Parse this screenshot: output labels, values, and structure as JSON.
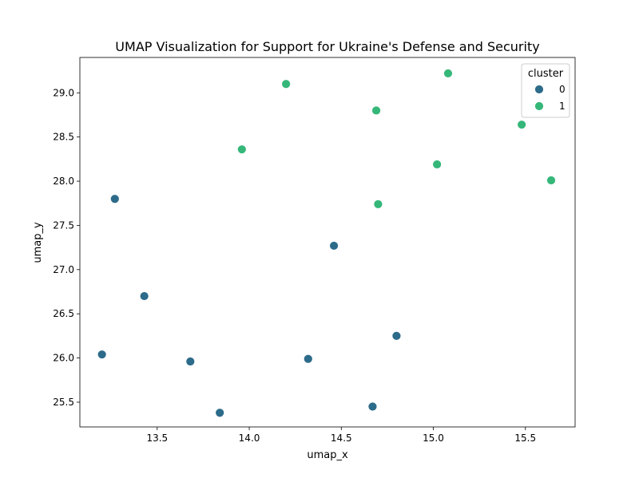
{
  "chart_data": {
    "type": "scatter",
    "title": "UMAP Visualization for Support for Ukraine's Defense and Security",
    "xlabel": "umap_x",
    "ylabel": "umap_y",
    "xlim": [
      13.08,
      15.77
    ],
    "ylim": [
      25.22,
      29.4
    ],
    "xticks": [
      13.5,
      14.0,
      14.5,
      15.0,
      15.5
    ],
    "xtick_labels": [
      "13.5",
      "14.0",
      "14.5",
      "15.0",
      "15.5"
    ],
    "yticks": [
      25.5,
      26.0,
      26.5,
      27.0,
      27.5,
      28.0,
      28.5,
      29.0
    ],
    "ytick_labels": [
      "25.5",
      "26.0",
      "26.5",
      "27.0",
      "27.5",
      "28.0",
      "28.5",
      "29.0"
    ],
    "grid": false,
    "legend": {
      "title": "cluster",
      "placement": "top-right",
      "entries": [
        "0",
        "1"
      ]
    },
    "series": [
      {
        "name": "0",
        "color": "#2d6b8a",
        "points": [
          {
            "x": 13.27,
            "y": 27.8
          },
          {
            "x": 14.46,
            "y": 27.27
          },
          {
            "x": 13.43,
            "y": 26.7
          },
          {
            "x": 14.8,
            "y": 26.25
          },
          {
            "x": 13.2,
            "y": 26.04
          },
          {
            "x": 13.68,
            "y": 25.96
          },
          {
            "x": 14.32,
            "y": 25.99
          },
          {
            "x": 13.84,
            "y": 25.38
          },
          {
            "x": 14.67,
            "y": 25.45
          }
        ]
      },
      {
        "name": "1",
        "color": "#35b779",
        "points": [
          {
            "x": 14.2,
            "y": 29.1
          },
          {
            "x": 15.08,
            "y": 29.22
          },
          {
            "x": 14.69,
            "y": 28.8
          },
          {
            "x": 15.48,
            "y": 28.64
          },
          {
            "x": 13.96,
            "y": 28.36
          },
          {
            "x": 15.02,
            "y": 28.19
          },
          {
            "x": 15.64,
            "y": 28.01
          },
          {
            "x": 14.7,
            "y": 27.74
          }
        ]
      }
    ]
  }
}
